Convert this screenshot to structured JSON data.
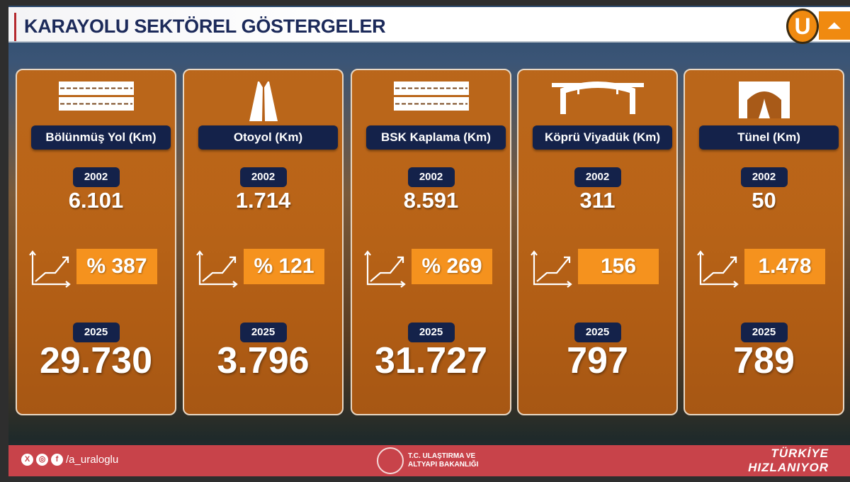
{
  "header": {
    "title": "KARAYOLU SEKTÖREL GÖSTERGELER",
    "logo_letter": "U"
  },
  "cards": [
    {
      "label": "Bölünmüş Yol (Km)",
      "icon": "divided-road-icon",
      "year_start": "2002",
      "value_start": "6.101",
      "change": "% 387",
      "year_end": "2025",
      "value_end": "29.730"
    },
    {
      "label": "Otoyol (Km)",
      "icon": "motorway-icon",
      "year_start": "2002",
      "value_start": "1.714",
      "change": "% 121",
      "year_end": "2025",
      "value_end": "3.796"
    },
    {
      "label": "BSK Kaplama (Km)",
      "icon": "asphalt-road-icon",
      "year_start": "2002",
      "value_start": "8.591",
      "change": "% 269",
      "year_end": "2025",
      "value_end": "31.727"
    },
    {
      "label": "Köprü Viyadük (Km)",
      "icon": "bridge-icon",
      "year_start": "2002",
      "value_start": "311",
      "change": "156",
      "year_end": "2025",
      "value_end": "797"
    },
    {
      "label": "Tünel (Km)",
      "icon": "tunnel-icon",
      "year_start": "2002",
      "value_start": "50",
      "change": "1.478",
      "year_end": "2025",
      "value_end": "789"
    }
  ],
  "footer": {
    "handle": "/a_uraloglu",
    "ministry_line1": "T.C. ULAŞTIRMA VE",
    "ministry_line2": "ALTYAPI BAKANLIĞI",
    "slogan_line1": "TÜRKİYE",
    "slogan_line2": "HIZLANIYOR"
  },
  "colors": {
    "navy": "#14224a",
    "orange": "#f5921e",
    "footer_red": "#c8434a"
  }
}
